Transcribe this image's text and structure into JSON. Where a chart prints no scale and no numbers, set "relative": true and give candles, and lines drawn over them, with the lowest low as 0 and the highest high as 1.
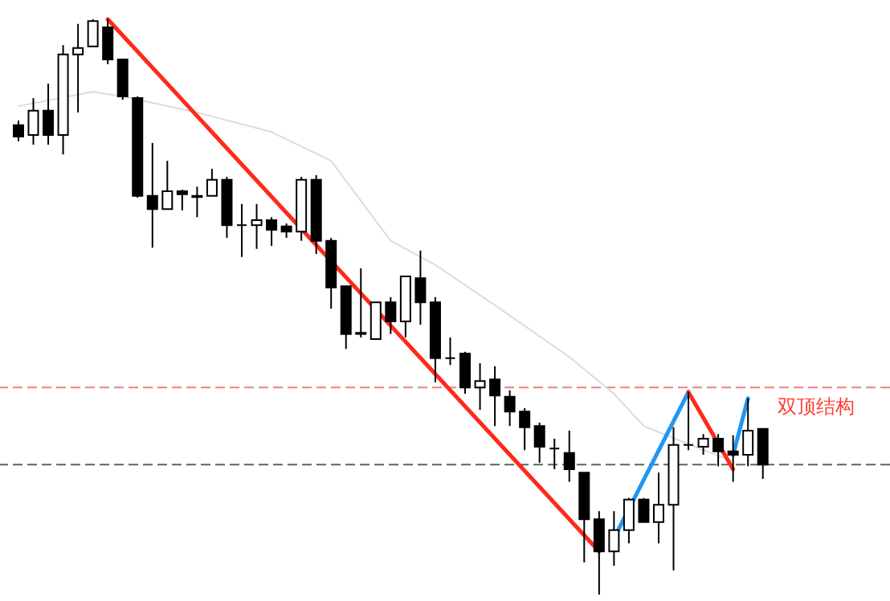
{
  "chart_data": {
    "type": "candlestick",
    "relative": true,
    "marker": "none",
    "line_style": "solid",
    "categories": [
      null,
      null,
      null,
      null,
      null,
      null,
      null,
      null,
      null,
      null,
      null,
      null,
      null,
      null,
      null,
      null,
      null,
      null,
      null,
      null,
      null,
      null,
      null,
      null,
      null,
      null,
      null,
      null,
      null,
      null,
      null,
      null,
      null,
      null,
      null,
      null,
      null,
      null,
      null,
      null,
      null,
      null,
      null,
      null,
      null,
      null,
      null,
      null,
      null,
      null,
      null
    ],
    "ohlc": [
      [
        0.816,
        0.824,
        0.788,
        0.796
      ],
      [
        0.799,
        0.863,
        0.782,
        0.841
      ],
      [
        0.841,
        0.888,
        0.782,
        0.799
      ],
      [
        0.799,
        0.955,
        0.765,
        0.939
      ],
      [
        0.939,
        0.992,
        0.838,
        0.95
      ],
      [
        0.953,
        1.0,
        0.953,
        0.997
      ],
      [
        0.986,
        1.0,
        0.922,
        0.93
      ],
      [
        0.93,
        0.93,
        0.86,
        0.866
      ],
      [
        0.863,
        0.866,
        0.69,
        0.693
      ],
      [
        0.693,
        0.785,
        0.603,
        0.67
      ],
      [
        0.67,
        0.754,
        0.67,
        0.701
      ],
      [
        0.701,
        0.704,
        0.668,
        0.696
      ],
      [
        0.693,
        0.709,
        0.656,
        0.691
      ],
      [
        0.693,
        0.74,
        0.693,
        0.721
      ],
      [
        0.721,
        0.726,
        0.62,
        0.642
      ],
      [
        0.642,
        0.679,
        0.587,
        0.642
      ],
      [
        0.642,
        0.679,
        0.601,
        0.651
      ],
      [
        0.651,
        0.656,
        0.606,
        0.634
      ],
      [
        0.64,
        0.645,
        0.62,
        0.631
      ],
      [
        0.631,
        0.726,
        0.615,
        0.721
      ],
      [
        0.721,
        0.729,
        0.592,
        0.615
      ],
      [
        0.615,
        0.62,
        0.497,
        0.534
      ],
      [
        0.536,
        0.536,
        0.427,
        0.453
      ],
      [
        0.453,
        0.567,
        0.447,
        0.455
      ],
      [
        0.444,
        0.508,
        0.444,
        0.508
      ],
      [
        0.508,
        0.517,
        0.453,
        0.475
      ],
      [
        0.475,
        0.553,
        0.447,
        0.553
      ],
      [
        0.55,
        0.598,
        0.469,
        0.508
      ],
      [
        0.508,
        0.517,
        0.369,
        0.411
      ],
      [
        0.411,
        0.447,
        0.399,
        0.411
      ],
      [
        0.419,
        0.422,
        0.349,
        0.36
      ],
      [
        0.36,
        0.402,
        0.321,
        0.371
      ],
      [
        0.374,
        0.397,
        0.293,
        0.346
      ],
      [
        0.344,
        0.355,
        0.293,
        0.318
      ],
      [
        0.318,
        0.324,
        0.251,
        0.291
      ],
      [
        0.293,
        0.299,
        0.229,
        0.257
      ],
      [
        0.254,
        0.271,
        0.218,
        0.254
      ],
      [
        0.246,
        0.285,
        0.196,
        0.218
      ],
      [
        0.212,
        0.212,
        0.056,
        0.131
      ],
      [
        0.131,
        0.145,
        0.0,
        0.075
      ],
      [
        0.075,
        0.145,
        0.05,
        0.112
      ],
      [
        0.112,
        0.168,
        0.089,
        0.165
      ],
      [
        0.165,
        0.168,
        0.126,
        0.126
      ],
      [
        0.126,
        0.212,
        0.089,
        0.156
      ],
      [
        0.156,
        0.291,
        0.042,
        0.26
      ],
      [
        0.26,
        0.352,
        0.251,
        0.26
      ],
      [
        0.257,
        0.279,
        0.243,
        0.271
      ],
      [
        0.271,
        0.279,
        0.223,
        0.249
      ],
      [
        0.249,
        0.277,
        0.196,
        0.243
      ],
      [
        0.243,
        0.341,
        0.223,
        0.285
      ],
      [
        0.288,
        0.288,
        0.201,
        0.226
      ]
    ],
    "series": [
      {
        "type": "line",
        "color": "#dcdcdc",
        "values": [
          0.849,
          null,
          null,
          null,
          null,
          0.874,
          null,
          0.866,
          null,
          null,
          null,
          null,
          0.838,
          null,
          null,
          null,
          null,
          0.804,
          null,
          null,
          null,
          0.754,
          null,
          null,
          null,
          0.615,
          null,
          null,
          0.573,
          null,
          null,
          null,
          0.503,
          null,
          null,
          null,
          null,
          0.413,
          null,
          null,
          0.349,
          null,
          0.293,
          null,
          null,
          null,
          0.251,
          null,
          0.232,
          null,
          null
        ]
      },
      {
        "type": "line",
        "color": "#ff2a1a",
        "values": [
          null,
          null,
          null,
          null,
          null,
          null,
          1.0,
          null,
          null,
          null,
          null,
          null,
          null,
          null,
          null,
          null,
          null,
          null,
          null,
          null,
          null,
          null,
          null,
          null,
          null,
          null,
          null,
          null,
          null,
          null,
          null,
          null,
          null,
          null,
          null,
          null,
          null,
          null,
          null,
          0.075,
          null,
          null,
          null,
          null,
          null,
          null,
          null,
          null,
          null,
          null,
          null
        ]
      },
      {
        "type": "line",
        "color": "#2196f3",
        "values": [
          null,
          null,
          null,
          null,
          null,
          null,
          null,
          null,
          null,
          null,
          null,
          null,
          null,
          null,
          null,
          null,
          null,
          null,
          null,
          null,
          null,
          null,
          null,
          null,
          null,
          null,
          null,
          null,
          null,
          null,
          null,
          null,
          null,
          null,
          null,
          null,
          null,
          null,
          null,
          null,
          0.098,
          null,
          null,
          null,
          null,
          0.352,
          null,
          null,
          null,
          null,
          null
        ]
      },
      {
        "type": "line",
        "color": "#ff2a1a",
        "values": [
          null,
          null,
          null,
          null,
          null,
          null,
          null,
          null,
          null,
          null,
          null,
          null,
          null,
          null,
          null,
          null,
          null,
          null,
          null,
          null,
          null,
          null,
          null,
          null,
          null,
          null,
          null,
          null,
          null,
          null,
          null,
          null,
          null,
          null,
          null,
          null,
          null,
          null,
          null,
          null,
          null,
          null,
          null,
          null,
          null,
          0.352,
          null,
          null,
          0.218,
          null,
          null
        ]
      },
      {
        "type": "line",
        "color": "#2196f3",
        "values": [
          null,
          null,
          null,
          null,
          null,
          null,
          null,
          null,
          null,
          null,
          null,
          null,
          null,
          null,
          null,
          null,
          null,
          null,
          null,
          null,
          null,
          null,
          null,
          null,
          null,
          null,
          null,
          null,
          null,
          null,
          null,
          null,
          null,
          null,
          null,
          null,
          null,
          null,
          null,
          null,
          null,
          null,
          null,
          null,
          null,
          null,
          null,
          null,
          0.243,
          0.341,
          null
        ]
      }
    ],
    "ref_lines": [
      {
        "axis": "y",
        "value": 0.36,
        "color": "#f08080",
        "line_style": "dashed"
      },
      {
        "axis": "y",
        "value": 0.226,
        "color": "#556b55",
        "line_style": "dashed"
      }
    ],
    "annotations": [
      "双顶结构"
    ]
  }
}
